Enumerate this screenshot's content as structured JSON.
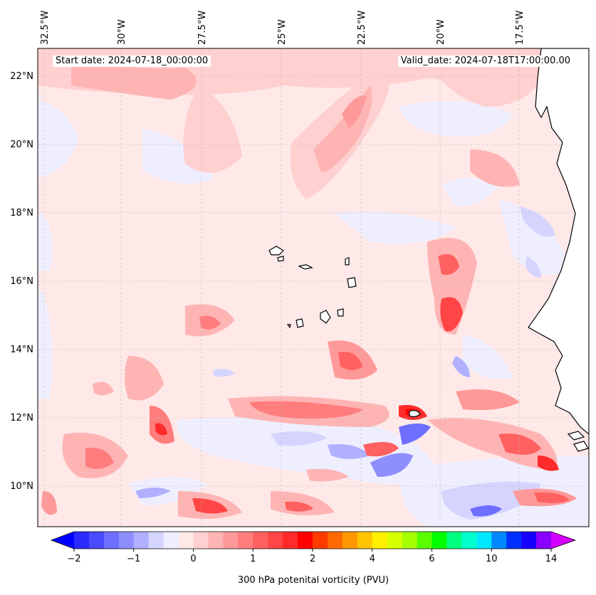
{
  "header": {
    "start_date": "Start date: 2024-07-18_00:00:00",
    "valid_date": "Valid_date: 2024-07-18T17:00:00.00"
  },
  "axes": {
    "lon_labels": [
      "32.5°W",
      "30°W",
      "27.5°W",
      "25°W",
      "22.5°W",
      "20°W",
      "17.5°W"
    ],
    "lat_labels": [
      "22°N",
      "20°N",
      "18°N",
      "16°N",
      "14°N",
      "12°N",
      "10°N"
    ]
  },
  "colorbar": {
    "label": "300 hPa potenital vorticity (PVU)",
    "tick_labels": [
      "−2",
      "−1",
      "0",
      "1",
      "2",
      "4",
      "6",
      "10",
      "14"
    ],
    "tick_values": [
      -2,
      -1,
      0,
      1,
      2,
      4,
      6,
      10,
      14
    ],
    "colors": [
      "#0000ff",
      "#2a2aff",
      "#4a4aff",
      "#6e6eff",
      "#8e8eff",
      "#b0b0ff",
      "#d4d4ff",
      "#eeeeff",
      "#ffe8e8",
      "#ffd0d0",
      "#ffb4b4",
      "#ff9999",
      "#ff7d7d",
      "#ff6161",
      "#ff4545",
      "#ff2a2a",
      "#ff0000",
      "#ff3b00",
      "#ff6a00",
      "#ff9800",
      "#ffc400",
      "#fff000",
      "#d8ff00",
      "#a6ff00",
      "#5cff00",
      "#00ff00",
      "#00ff80",
      "#00ffcc",
      "#00e8ff",
      "#0088ff",
      "#0030ff",
      "#1800ff",
      "#8a00ff",
      "#d400ff"
    ],
    "extend": "both"
  },
  "map": {
    "background_color": "#ffe8e8",
    "land_color": "#ffffff",
    "coastline_color": "#000000"
  }
}
